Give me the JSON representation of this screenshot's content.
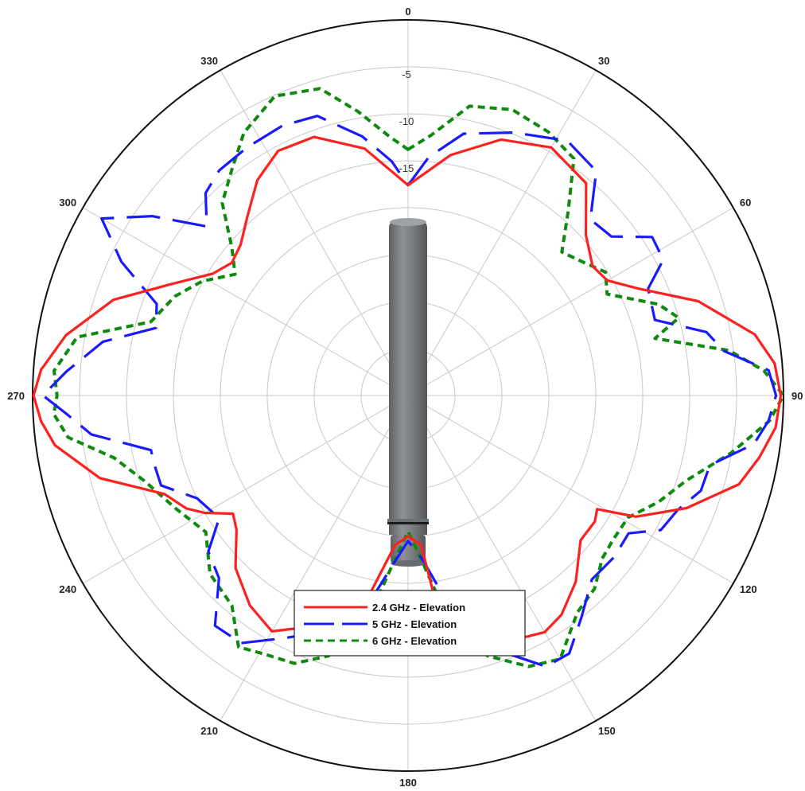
{
  "chart_data": {
    "type": "polar-line",
    "theta_direction": "clockwise",
    "theta_zero": "top",
    "angle_ticks": [
      0,
      30,
      60,
      90,
      120,
      150,
      180,
      210,
      240,
      270,
      300,
      330
    ],
    "angle_tick_labels": [
      "0",
      "30",
      "60",
      "90",
      "120",
      "150",
      "180",
      "210",
      "240",
      "270",
      "300",
      "330"
    ],
    "r_range": [
      -40,
      0
    ],
    "r_ticks": [
      -40,
      -35,
      -30,
      -25,
      -20,
      -15,
      -10,
      -5,
      0
    ],
    "r_tick_labels_shown": [
      "-5",
      "-10",
      "-15"
    ],
    "legend_position": "bottom-center",
    "series": [
      {
        "name": "2.4 GHz - Elevation",
        "color": "#ff2020",
        "style": "solid",
        "points": [
          [
            0,
            -17.6
          ],
          [
            10,
            -14
          ],
          [
            20,
            -11
          ],
          [
            30,
            -9.5
          ],
          [
            40,
            -10.5
          ],
          [
            48,
            -14.5
          ],
          [
            55,
            -16
          ],
          [
            60,
            -15.5
          ],
          [
            65,
            -13
          ],
          [
            72,
            -7.5
          ],
          [
            80,
            -2.5
          ],
          [
            85,
            -0.8
          ],
          [
            90,
            -0.3
          ],
          [
            95,
            -0.7
          ],
          [
            100,
            -2
          ],
          [
            105,
            -3.5
          ],
          [
            112,
            -8
          ],
          [
            118,
            -12.5
          ],
          [
            121,
            -16.5
          ],
          [
            124,
            -16
          ],
          [
            130,
            -16
          ],
          [
            138,
            -13.3
          ],
          [
            145,
            -11.5
          ],
          [
            150,
            -10.9
          ],
          [
            155,
            -11.5
          ],
          [
            165,
            -14
          ],
          [
            172,
            -16.5
          ],
          [
            175,
            -24
          ],
          [
            180,
            -25
          ],
          [
            185,
            -24
          ],
          [
            192,
            -17
          ],
          [
            200,
            -14
          ],
          [
            210,
            -11
          ],
          [
            217,
            -12
          ],
          [
            225,
            -14
          ],
          [
            232,
            -16.8
          ],
          [
            236,
            -17.5
          ],
          [
            240,
            -15
          ],
          [
            243,
            -13.5
          ],
          [
            248,
            -12
          ],
          [
            255,
            -6
          ],
          [
            262,
            -2
          ],
          [
            266,
            -0.8
          ],
          [
            270,
            -0.1
          ],
          [
            274,
            -0.8
          ],
          [
            280,
            -3
          ],
          [
            288,
            -7
          ],
          [
            295,
            -12
          ],
          [
            302,
            -15.5
          ],
          [
            307,
            -16.5
          ],
          [
            312,
            -16
          ],
          [
            318,
            -14.4
          ],
          [
            325,
            -12
          ],
          [
            332,
            -10.5
          ],
          [
            340,
            -10.7
          ],
          [
            350,
            -13.3
          ],
          [
            360,
            -17.6
          ]
        ]
      },
      {
        "name": "5 GHz - Elevation",
        "color": "#1a1aff",
        "style": "long-dash",
        "points": [
          [
            0,
            -17.6
          ],
          [
            5,
            -14.5
          ],
          [
            12,
            -11.5
          ],
          [
            22,
            -9.8
          ],
          [
            32,
            -8
          ],
          [
            40,
            -8.8
          ],
          [
            46,
            -13
          ],
          [
            52,
            -12.5
          ],
          [
            57,
            -9
          ],
          [
            62,
            -9.2
          ],
          [
            66,
            -12
          ],
          [
            73,
            -12.5
          ],
          [
            78,
            -7.5
          ],
          [
            82,
            -6
          ],
          [
            86,
            -1.5
          ],
          [
            90,
            -0.8
          ],
          [
            94,
            -1.5
          ],
          [
            98,
            -2.8
          ],
          [
            103,
            -7
          ],
          [
            108,
            -7.2
          ],
          [
            113,
            -8.8
          ],
          [
            118,
            -9.5
          ],
          [
            122,
            -12.3
          ],
          [
            128,
            -12.1
          ],
          [
            135,
            -12.3
          ],
          [
            142,
            -10
          ],
          [
            148,
            -7.6
          ],
          [
            153,
            -7.6
          ],
          [
            160,
            -11
          ],
          [
            168,
            -16
          ],
          [
            175,
            -22.5
          ],
          [
            180,
            -24.5
          ],
          [
            185,
            -22
          ],
          [
            192,
            -16
          ],
          [
            199,
            -13.5
          ],
          [
            207,
            -11
          ],
          [
            214,
            -8.2
          ],
          [
            220,
            -8
          ],
          [
            226,
            -12
          ],
          [
            232,
            -13
          ],
          [
            237,
            -16
          ],
          [
            244,
            -15
          ],
          [
            250,
            -12
          ],
          [
            254,
            -12
          ],
          [
            258,
            -12
          ],
          [
            263,
            -6
          ],
          [
            267,
            -3.5
          ],
          [
            270,
            -1.1
          ],
          [
            274,
            -3.5
          ],
          [
            280,
            -7
          ],
          [
            285,
            -12.2
          ],
          [
            290,
            -11.5
          ],
          [
            295,
            -6.3
          ],
          [
            300,
            -2.3
          ],
          [
            305,
            -6.7
          ],
          [
            310,
            -12
          ],
          [
            315,
            -9.5
          ],
          [
            320,
            -8.7
          ],
          [
            327,
            -8.5
          ],
          [
            335,
            -8.3
          ],
          [
            342,
            -8.7
          ],
          [
            350,
            -12
          ],
          [
            356,
            -15
          ],
          [
            360,
            -17.6
          ]
        ]
      },
      {
        "name": "6 GHz - Elevation",
        "color": "#0f8a0f",
        "style": "short-dash",
        "points": [
          [
            0,
            -13.8
          ],
          [
            5,
            -12.2
          ],
          [
            12,
            -8.5
          ],
          [
            20,
            -7.6
          ],
          [
            28,
            -8.2
          ],
          [
            35,
            -9.2
          ],
          [
            41,
            -14
          ],
          [
            47,
            -17.6
          ],
          [
            53,
            -16.5
          ],
          [
            58,
            -15.2
          ],
          [
            63,
            -16.2
          ],
          [
            70,
            -11.6
          ],
          [
            74,
            -10
          ],
          [
            77,
            -13
          ],
          [
            82,
            -5.5
          ],
          [
            86,
            -2
          ],
          [
            90,
            0
          ],
          [
            94,
            -1.4
          ],
          [
            100,
            -5
          ],
          [
            107,
            -9
          ],
          [
            113,
            -11
          ],
          [
            119,
            -13.2
          ],
          [
            125,
            -13.3
          ],
          [
            130,
            -13
          ],
          [
            136,
            -11.4
          ],
          [
            142,
            -10.7
          ],
          [
            150,
            -7.6
          ],
          [
            156,
            -8.4
          ],
          [
            163,
            -11
          ],
          [
            170,
            -16
          ],
          [
            176,
            -23
          ],
          [
            180,
            -25.5
          ],
          [
            184,
            -23
          ],
          [
            190,
            -16
          ],
          [
            197,
            -11
          ],
          [
            203,
            -9
          ],
          [
            209,
            -8.5
          ],
          [
            214,
            -7.7
          ],
          [
            220,
            -10.8
          ],
          [
            228,
            -11.6
          ],
          [
            236,
            -14
          ],
          [
            244,
            -12.5
          ],
          [
            252,
            -10.5
          ],
          [
            258,
            -8
          ],
          [
            263,
            -3.5
          ],
          [
            267,
            -2.2
          ],
          [
            270,
            -2.6
          ],
          [
            274,
            -2.2
          ],
          [
            280,
            -4.2
          ],
          [
            286,
            -11.5
          ],
          [
            293,
            -13
          ],
          [
            299,
            -14.9
          ],
          [
            305,
            -17.5
          ],
          [
            310,
            -15.5
          ],
          [
            316,
            -11.5
          ],
          [
            322,
            -9.5
          ],
          [
            328,
            -7
          ],
          [
            336,
            -5.1
          ],
          [
            344,
            -6
          ],
          [
            350,
            -9.3
          ],
          [
            356,
            -12.4
          ],
          [
            360,
            -13.8
          ]
        ]
      }
    ]
  },
  "colors": {
    "background": "#ffffff",
    "grid": "#c8c8c8",
    "outer_ring": "#111111",
    "antenna_body": "#7a7d80"
  },
  "image": {
    "subject": "antenna-icon"
  }
}
